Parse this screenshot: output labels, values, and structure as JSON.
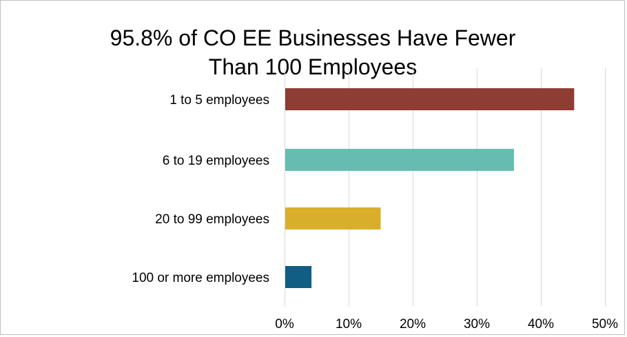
{
  "chart_data": {
    "type": "bar",
    "orientation": "horizontal",
    "title_lines": [
      "95.8% of CO EE Businesses Have Fewer",
      "Than 100 Employees"
    ],
    "categories": [
      "1 to 5 employees",
      "6 to 19 employees",
      "20 to 99 employees",
      "100 or more employees"
    ],
    "values": [
      45.2,
      35.8,
      15.0,
      4.2
    ],
    "colors": [
      "#8e3d33",
      "#66bcb0",
      "#d9ae2a",
      "#105e82"
    ],
    "xlim": [
      0,
      50
    ],
    "xticks": [
      0,
      10,
      20,
      30,
      40,
      50
    ],
    "xtick_labels": [
      "0%",
      "10%",
      "20%",
      "30%",
      "40%",
      "50%"
    ],
    "grid": "vertical",
    "grid_color": "#d9d9d9",
    "legend": "none"
  }
}
